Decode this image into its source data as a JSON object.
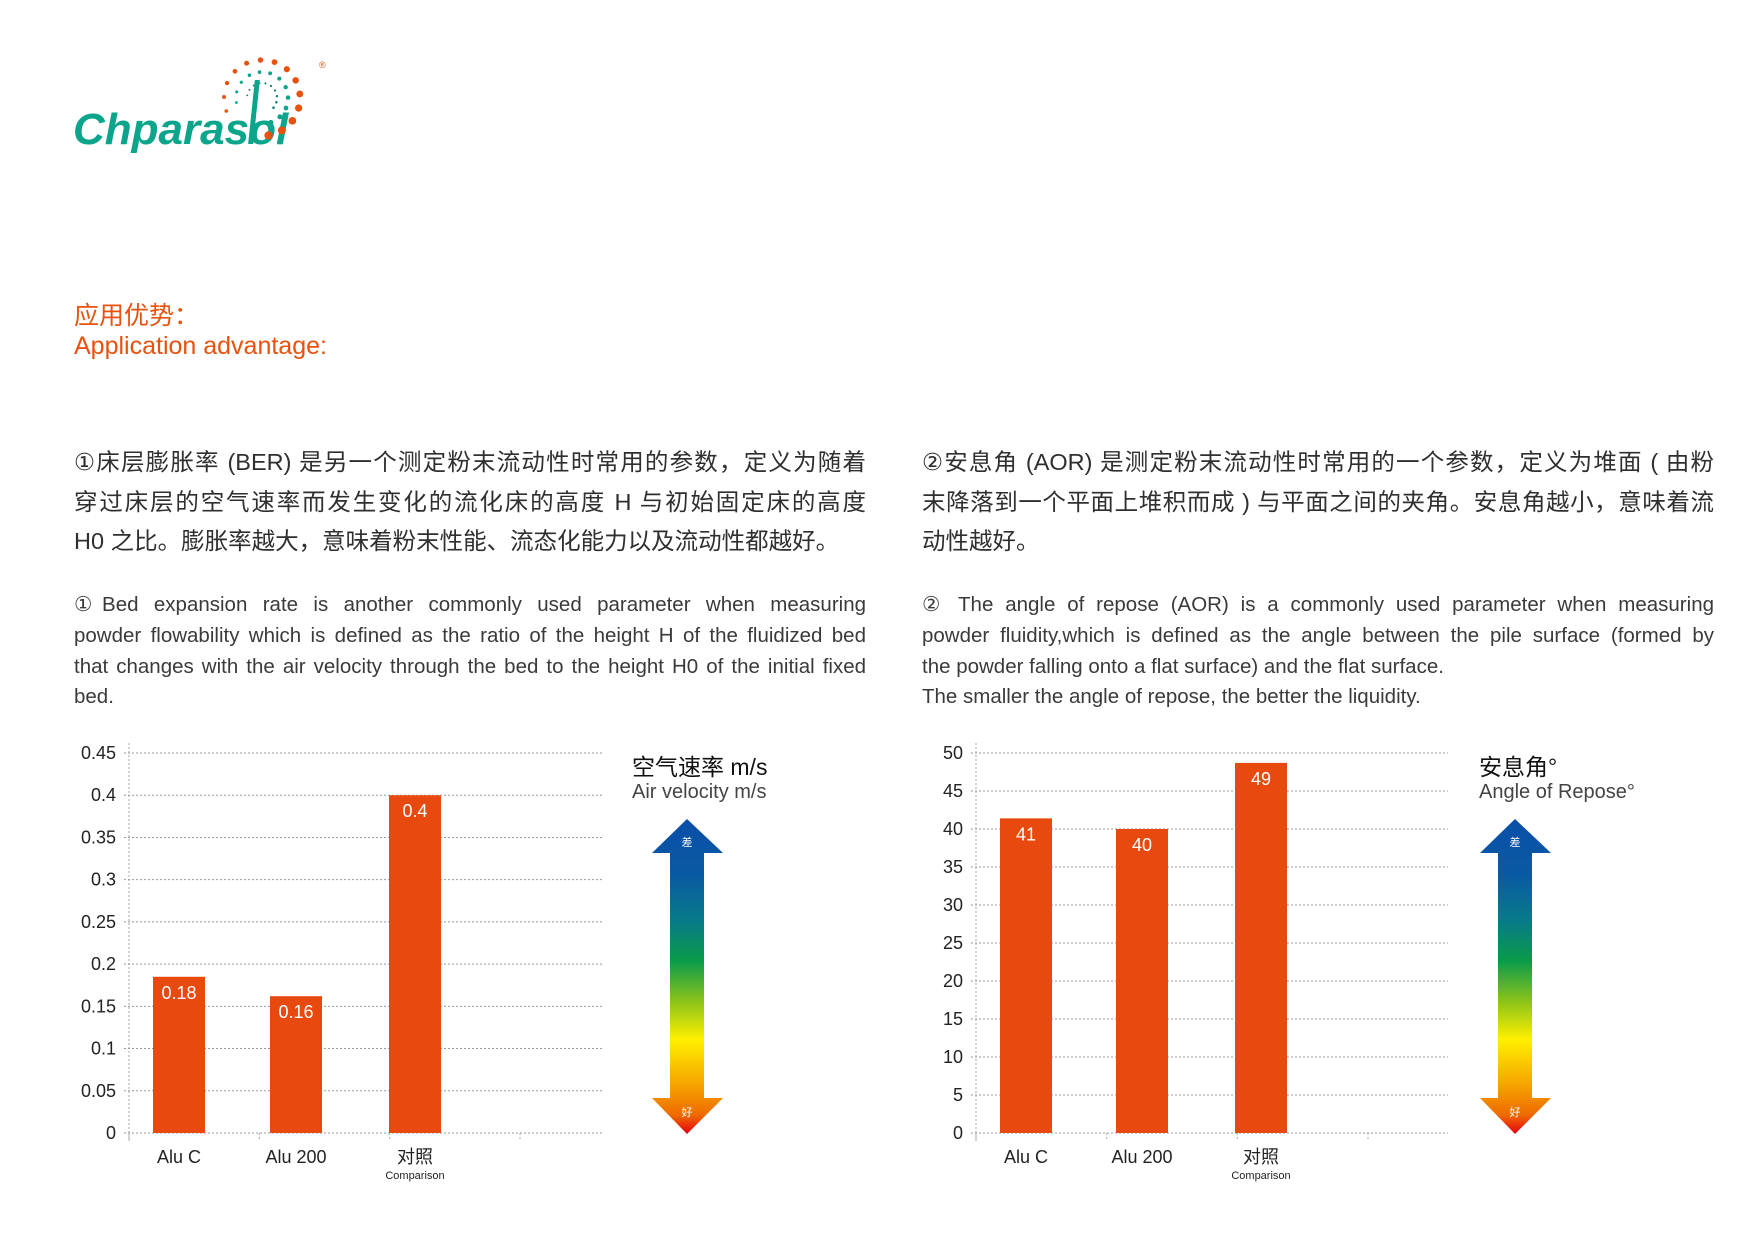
{
  "logo": {
    "text": "Chparasol",
    "registered": "®",
    "colors": {
      "teal": "#0aa58a",
      "orange": "#e8520f"
    }
  },
  "section": {
    "title_cn": "应用优势：",
    "title_en": "Application advantage:"
  },
  "left": {
    "cn_lines": [
      "①床层膨胀率 (BER) 是另一个测定粉末流动性时常用的参数，定义为随着",
      "穿过床层的空气速率而发生变化的流化床的高度 H 与初始固定床的高度",
      "H0 之比。膨胀率越大，意味着粉末性能、流态化能力以及流动性都越好。"
    ],
    "en_lines": [
      "①Bed expansion rate is another commonly used parameter when measuring",
      "powder flowability which is defined as the ratio of the height H of the fluidized bed",
      "that changes with the air velocity through the bed to the height H0 of the initial fixed",
      "bed."
    ],
    "legend": {
      "title_cn": "空气速率 m/s",
      "title_en": "Air velocity m/s",
      "top_label": "差",
      "bottom_label": "好"
    }
  },
  "right": {
    "cn_lines": [
      "②安息角 (AOR) 是测定粉末流动性时常用的一个参数，定义为堆面 ( 由粉",
      "末降落到一个平面上堆积而成 ) 与平面之间的夹角。安息角越小，意味着流",
      "动性越好。"
    ],
    "en_lines": [
      "② The angle of repose (AOR) is a commonly used parameter when measuring",
      "powder fluidity,which is defined as the angle between the pile surface (formed by",
      "the powder falling onto a flat surface) and the flat surface.",
      "The smaller the angle of repose, the better the liquidity."
    ],
    "legend": {
      "title_cn": "安息角°",
      "title_en": "Angle of Repose°",
      "top_label": "差",
      "bottom_label": "好"
    }
  },
  "colors": {
    "bar": "#e8490f",
    "text": "#333333",
    "accent": "#e8520f"
  },
  "chart_data": [
    {
      "type": "bar",
      "title": "空气速率 m/s / Air velocity m/s",
      "categories": [
        "Alu C",
        "Alu 200",
        "对照"
      ],
      "category_sublabels": [
        "",
        "",
        "Comparison"
      ],
      "values": [
        0.185,
        0.162,
        0.4
      ],
      "data_labels": [
        "0.18",
        "0.16",
        "0.4"
      ],
      "yticks": [
        "0",
        "0.05",
        "0.1",
        "0.15",
        "0.2",
        "0.25",
        "0.3",
        "0.35",
        "0.4",
        "0.45"
      ],
      "ylim": [
        0,
        0.45
      ],
      "grid": true,
      "xlabel": "",
      "ylabel": ""
    },
    {
      "type": "bar",
      "title": "安息角° / Angle of Repose°",
      "categories": [
        "Alu C",
        "Alu 200",
        "对照"
      ],
      "category_sublabels": [
        "",
        "",
        "Comparison"
      ],
      "values": [
        41.4,
        40,
        48.7
      ],
      "data_labels": [
        "41",
        "40",
        "49"
      ],
      "yticks": [
        "0",
        "5",
        "10",
        "15",
        "20",
        "25",
        "30",
        "35",
        "40",
        "45",
        "50"
      ],
      "ylim": [
        0,
        50
      ],
      "grid": true,
      "xlabel": "",
      "ylabel": ""
    }
  ]
}
